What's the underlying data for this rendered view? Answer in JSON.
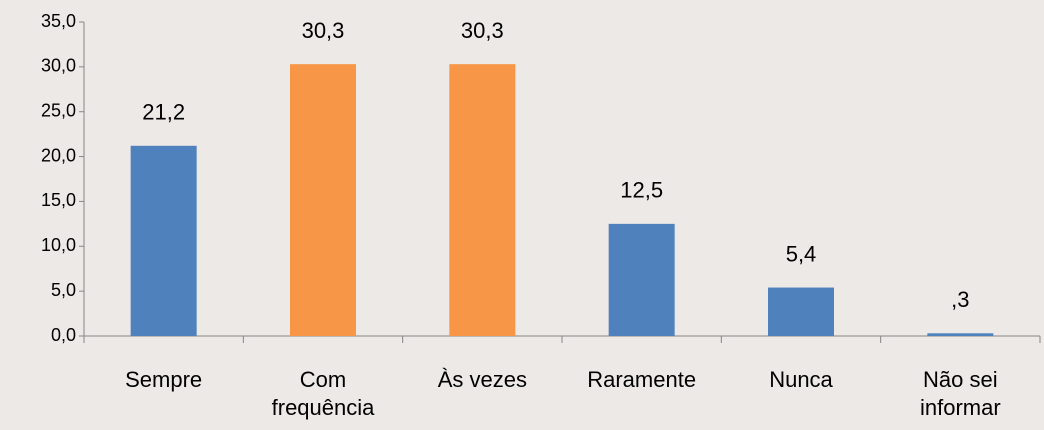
{
  "chart_data": {
    "type": "bar",
    "categories": [
      "Sempre",
      "Com frequência",
      "Às vezes",
      "Raramente",
      "Nunca",
      "Não sei informar"
    ],
    "values": [
      21.2,
      30.3,
      30.3,
      12.5,
      5.4,
      0.3
    ],
    "value_labels": [
      "21,2",
      "30,3",
      "30,3",
      "12,5",
      "5,4",
      ",3"
    ],
    "colors": [
      "#4f81bd",
      "#f79646",
      "#f79646",
      "#4f81bd",
      "#4f81bd",
      "#4f81bd"
    ],
    "ylim": [
      0,
      35
    ],
    "yticks": [
      {
        "value": 0,
        "label": "0,0"
      },
      {
        "value": 5,
        "label": "5,0"
      },
      {
        "value": 10,
        "label": "10,0"
      },
      {
        "value": 15,
        "label": "15,0"
      },
      {
        "value": 20,
        "label": "20,0"
      },
      {
        "value": 25,
        "label": "25,0"
      },
      {
        "value": 30,
        "label": "30,0"
      },
      {
        "value": 35,
        "label": "35,0"
      }
    ],
    "grid": false
  }
}
